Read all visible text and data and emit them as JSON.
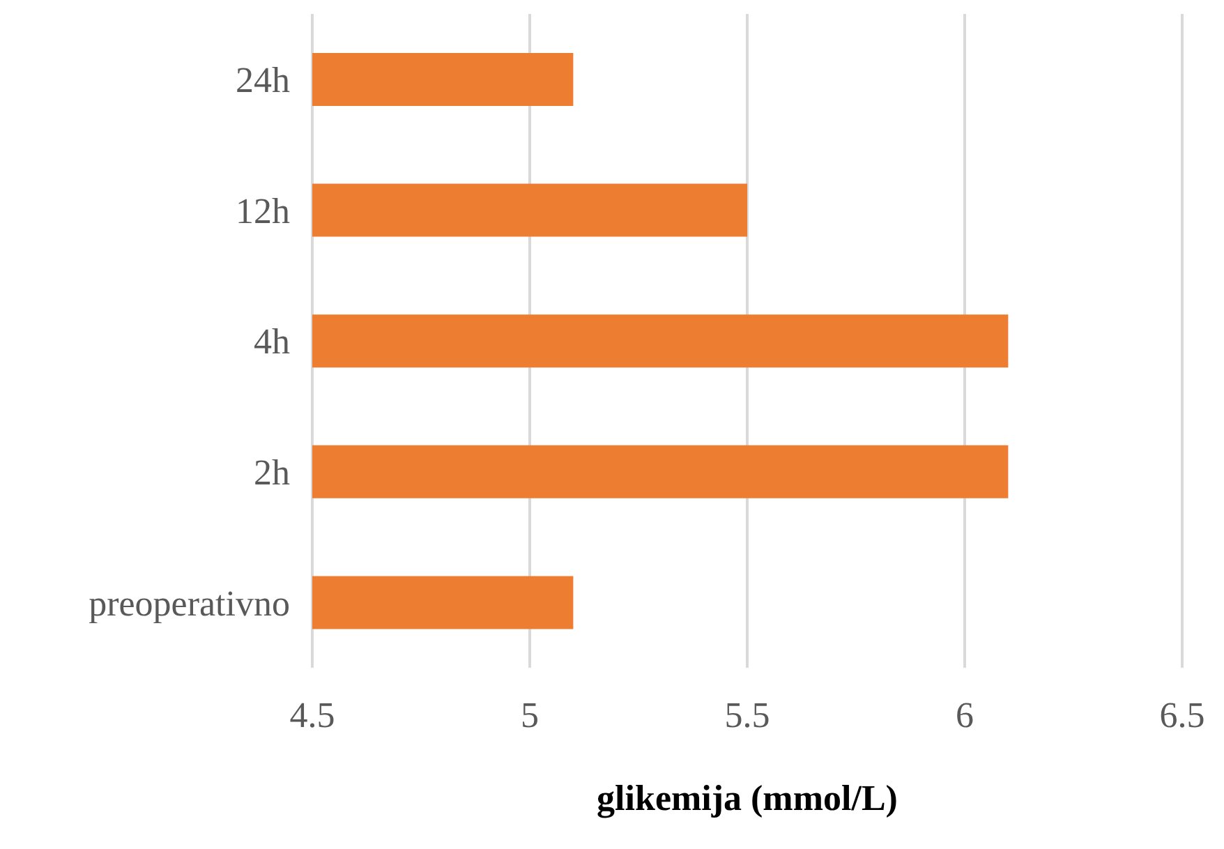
{
  "chart_data": {
    "type": "bar",
    "orientation": "horizontal",
    "xlabel": "glikemija (mmol/L)",
    "categories": [
      "24h",
      "12h",
      "4h",
      "2h",
      "preoperativno"
    ],
    "values": [
      5.1,
      5.5,
      6.1,
      6.1,
      5.1
    ],
    "color": "#ed7d31",
    "xlim": [
      4.5,
      6.5
    ],
    "xticks": [
      4.5,
      5,
      5.5,
      6,
      6.5
    ],
    "grid": "x"
  }
}
